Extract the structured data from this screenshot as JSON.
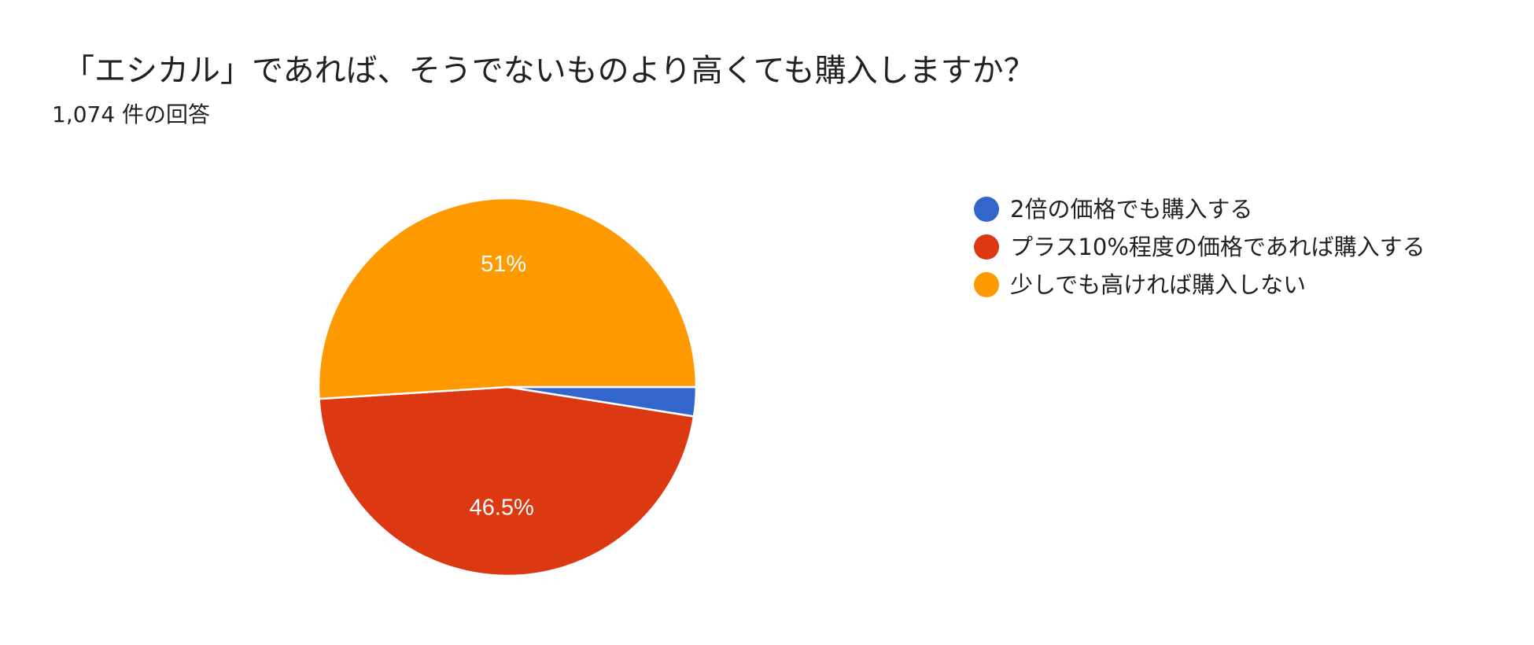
{
  "colors": {
    "s1": "#3366cc",
    "s2": "#dc3912",
    "s3": "#ff9900",
    "label": "#ffffff"
  },
  "chart_data": {
    "type": "pie",
    "title": "「エシカル」であれば、そうでないものより高くても購入しますか？",
    "subtitle": "1,074 件の回答",
    "slices": [
      {
        "name": "2倍の価格でも購入する",
        "value": 2.5,
        "color": "#3366cc",
        "label": ""
      },
      {
        "name": "プラス10%程度の価格であれば購入する",
        "value": 46.5,
        "color": "#dc3912",
        "label": "46.5%"
      },
      {
        "name": "少しでも高ければ購入しない",
        "value": 51,
        "color": "#ff9900",
        "label": "51%"
      }
    ],
    "legend_position": "right"
  }
}
